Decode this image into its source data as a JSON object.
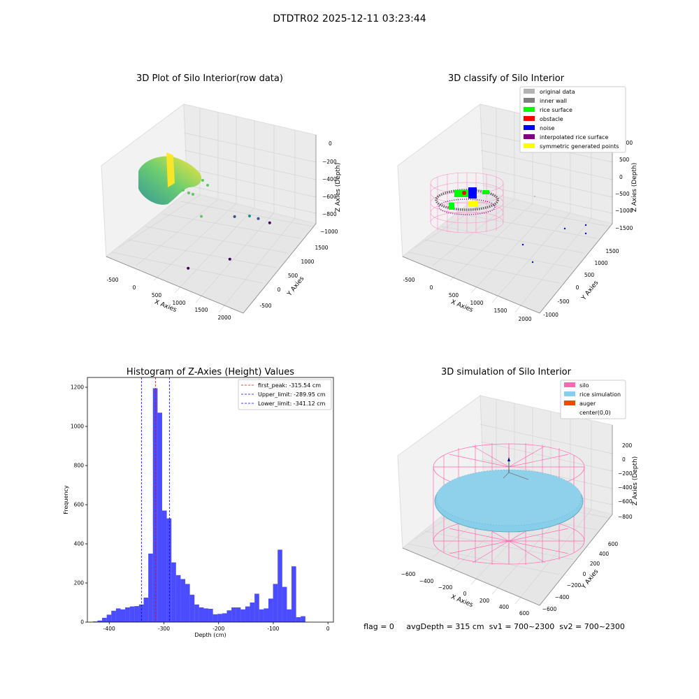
{
  "figure": {
    "suptitle": "DTDTR02 2025-12-11 03:23:44",
    "status_text": "flag = 0     avgDepth = 315 cm  sv1 = 700~2300  sv2 = 700~2300"
  },
  "chart_data": [
    {
      "type": "scatter",
      "title": "3D Plot of Silo Interior(row data)",
      "xlabel": "X Axies",
      "ylabel": "Y Axies",
      "zlabel": "Z Axies (Depth)",
      "xticks": [
        "-500",
        "0",
        "500",
        "1000",
        "1500",
        "2000"
      ],
      "yticks": [
        "-500",
        "0",
        "500",
        "1000",
        "1500"
      ],
      "zticks": [
        "0",
        "−200",
        "−400",
        "−600",
        "−800",
        "−1000"
      ],
      "colormap": [
        "#440154",
        "#3b528b",
        "#21918c",
        "#5ec962",
        "#fde725"
      ],
      "outlier_points": [
        {
          "x": 1600,
          "y": 1400,
          "z": -900
        },
        {
          "x": 1500,
          "y": 1250,
          "z": -750
        },
        {
          "x": 1200,
          "y": 1100,
          "z": -720
        },
        {
          "x": 1350,
          "y": 700,
          "z": -1000
        },
        {
          "x": 900,
          "y": 300,
          "z": -1000
        },
        {
          "x": 1000,
          "y": 500,
          "z": -300
        },
        {
          "x": 1500,
          "y": 1000,
          "z": -500
        }
      ]
    },
    {
      "type": "scatter",
      "title": "3D classify of Silo Interior",
      "xlabel": "X Axies",
      "ylabel": "Y Axies",
      "zlabel": "Z Axies (Depth)",
      "xticks": [
        "-500",
        "0",
        "500",
        "1000",
        "1500",
        "2000"
      ],
      "yticks": [
        "-1000",
        "-500",
        "0",
        "500",
        "1000",
        "1500"
      ],
      "zticks": [
        "1000",
        "500",
        "0",
        "−500",
        "−1000",
        "−1500"
      ],
      "legend": [
        {
          "label": "original data",
          "color": "#b3b3b3"
        },
        {
          "label": "inner wall",
          "color": "#808080"
        },
        {
          "label": "rice surface",
          "color": "#00ff00"
        },
        {
          "label": "obstacle",
          "color": "#ff0000"
        },
        {
          "label": "noise",
          "color": "#0000ff"
        },
        {
          "label": "interpolated rice surface",
          "color": "#800080"
        },
        {
          "label": "symmetric generated points",
          "color": "#ffff00"
        }
      ],
      "legend_position": "upper right"
    },
    {
      "type": "bar",
      "title": "Histogram of Z-Axies (Height) Values",
      "xlabel": "Depth (cm)",
      "ylabel": "Frequency",
      "xlim": [
        -440,
        10
      ],
      "ylim": [
        0,
        1250
      ],
      "xticks": [
        -400,
        -300,
        -200,
        -100,
        0
      ],
      "yticks": [
        0,
        200,
        400,
        600,
        800,
        1000,
        1200
      ],
      "bar_color": "#0000ff",
      "bin_edges_start": -430,
      "bin_width": 8.45,
      "values": [
        3,
        8,
        22,
        38,
        58,
        70,
        65,
        75,
        80,
        82,
        90,
        125,
        350,
        1195,
        1070,
        570,
        530,
        305,
        240,
        220,
        195,
        140,
        90,
        75,
        70,
        68,
        40,
        42,
        45,
        60,
        75,
        75,
        65,
        80,
        100,
        145,
        65,
        70,
        120,
        195,
        370,
        180,
        65,
        285,
        25,
        30
      ],
      "vlines": [
        {
          "label": "first_peak: -315.54 cm",
          "x": -315.54,
          "color": "#ff0000"
        },
        {
          "label": "Upper_limit: -289.95 cm",
          "x": -289.95,
          "color": "#0000ff"
        },
        {
          "label": "Lower_limit: -341.12 cm",
          "x": -341.12,
          "color": "#0000ff"
        }
      ],
      "legend_position": "upper right"
    },
    {
      "type": "scatter",
      "title": "3D simulation of Silo Interior",
      "xlabel": "X Axies",
      "ylabel": "Y Axies",
      "zlabel": "Z Axies (Depth)",
      "xticks": [
        "−600",
        "−400",
        "−200",
        "0",
        "200",
        "400",
        "600"
      ],
      "yticks": [
        "−600",
        "−400",
        "−200",
        "0",
        "200",
        "400",
        "600"
      ],
      "zticks": [
        "200",
        "0",
        "−200",
        "−400",
        "−600",
        "−800"
      ],
      "legend": [
        {
          "label": "silo",
          "color": "#ff69b4"
        },
        {
          "label": "rice simulation",
          "color": "#87ceeb"
        },
        {
          "label": "auger",
          "color": "#ff4500"
        },
        {
          "label": "center(0,0)",
          "color": ""
        }
      ],
      "legend_position": "upper right"
    }
  ]
}
